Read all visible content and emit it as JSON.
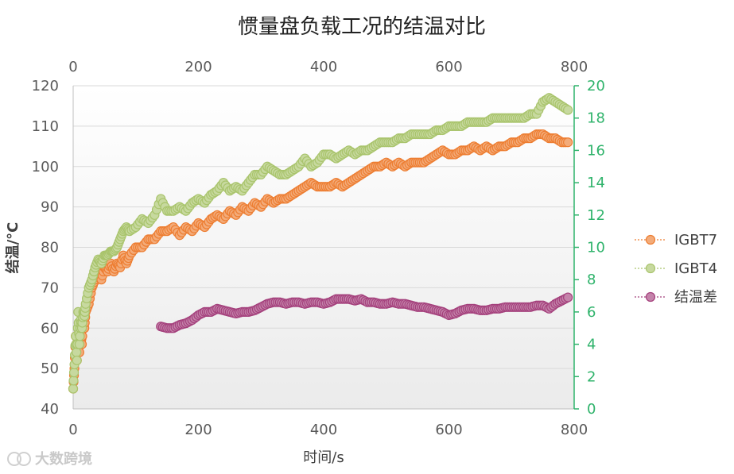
{
  "chart_data": {
    "type": "scatter",
    "title": "惯量盘负载工况的结温对比",
    "xlabel": "时间/s",
    "ylabel": "结温/°C",
    "xlim": [
      0,
      800
    ],
    "ylim": [
      40,
      120
    ],
    "y2lim": [
      0,
      20
    ],
    "x_ticks": [
      "0",
      "200",
      "400",
      "600",
      "800"
    ],
    "x2_ticks": [
      "0",
      "200",
      "400",
      "600",
      "800"
    ],
    "y_ticks": [
      "40",
      "50",
      "60",
      "70",
      "80",
      "90",
      "100",
      "110",
      "120"
    ],
    "y2_ticks": [
      "0",
      "2",
      "4",
      "6",
      "8",
      "10",
      "12",
      "14",
      "16",
      "18",
      "20"
    ],
    "grid": true,
    "legend_position": "right",
    "series": [
      {
        "name": "IGBT7",
        "axis": "left",
        "color": "#ed7d31",
        "points": [
          [
            0,
            45
          ],
          [
            2,
            50
          ],
          [
            4,
            58
          ],
          [
            6,
            52
          ],
          [
            8,
            58
          ],
          [
            10,
            54
          ],
          [
            12,
            60
          ],
          [
            14,
            56
          ],
          [
            16,
            62
          ],
          [
            18,
            60
          ],
          [
            20,
            64
          ],
          [
            25,
            66
          ],
          [
            30,
            70
          ],
          [
            35,
            72
          ],
          [
            40,
            74
          ],
          [
            45,
            72
          ],
          [
            50,
            75
          ],
          [
            55,
            74
          ],
          [
            60,
            76
          ],
          [
            65,
            74
          ],
          [
            70,
            76
          ],
          [
            75,
            75
          ],
          [
            80,
            78
          ],
          [
            85,
            76
          ],
          [
            90,
            78
          ],
          [
            100,
            80
          ],
          [
            110,
            80
          ],
          [
            120,
            82
          ],
          [
            130,
            82
          ],
          [
            140,
            84
          ],
          [
            150,
            84
          ],
          [
            160,
            85
          ],
          [
            170,
            83
          ],
          [
            180,
            85
          ],
          [
            190,
            84
          ],
          [
            200,
            86
          ],
          [
            210,
            85
          ],
          [
            220,
            87
          ],
          [
            230,
            88
          ],
          [
            240,
            87
          ],
          [
            250,
            89
          ],
          [
            260,
            88
          ],
          [
            270,
            90
          ],
          [
            280,
            89
          ],
          [
            290,
            91
          ],
          [
            300,
            90
          ],
          [
            310,
            92
          ],
          [
            320,
            91
          ],
          [
            330,
            92
          ],
          [
            340,
            92
          ],
          [
            350,
            93
          ],
          [
            360,
            94
          ],
          [
            370,
            95
          ],
          [
            380,
            96
          ],
          [
            390,
            95
          ],
          [
            400,
            95
          ],
          [
            410,
            95
          ],
          [
            420,
            96
          ],
          [
            430,
            95
          ],
          [
            440,
            96
          ],
          [
            450,
            97
          ],
          [
            460,
            98
          ],
          [
            470,
            99
          ],
          [
            480,
            100
          ],
          [
            490,
            100
          ],
          [
            500,
            101
          ],
          [
            510,
            100
          ],
          [
            520,
            101
          ],
          [
            530,
            100
          ],
          [
            540,
            101
          ],
          [
            550,
            101
          ],
          [
            560,
            101
          ],
          [
            570,
            102
          ],
          [
            580,
            103
          ],
          [
            590,
            104
          ],
          [
            600,
            103
          ],
          [
            610,
            103
          ],
          [
            620,
            104
          ],
          [
            630,
            104
          ],
          [
            640,
            105
          ],
          [
            650,
            104
          ],
          [
            660,
            105
          ],
          [
            670,
            104
          ],
          [
            680,
            105
          ],
          [
            690,
            105
          ],
          [
            700,
            106
          ],
          [
            710,
            106
          ],
          [
            720,
            107
          ],
          [
            730,
            107
          ],
          [
            740,
            108
          ],
          [
            750,
            108
          ],
          [
            760,
            107
          ],
          [
            770,
            107
          ],
          [
            780,
            106
          ],
          [
            790,
            106
          ]
        ]
      },
      {
        "name": "IGBT4",
        "axis": "left",
        "color": "#a9c46c",
        "points": [
          [
            0,
            45
          ],
          [
            2,
            51
          ],
          [
            4,
            58
          ],
          [
            6,
            52
          ],
          [
            8,
            64
          ],
          [
            10,
            56
          ],
          [
            12,
            62
          ],
          [
            14,
            60
          ],
          [
            16,
            64
          ],
          [
            18,
            63
          ],
          [
            20,
            66
          ],
          [
            25,
            70
          ],
          [
            30,
            72
          ],
          [
            35,
            75
          ],
          [
            40,
            77
          ],
          [
            45,
            76
          ],
          [
            50,
            78
          ],
          [
            55,
            78
          ],
          [
            60,
            79
          ],
          [
            65,
            79
          ],
          [
            70,
            80
          ],
          [
            75,
            82
          ],
          [
            80,
            84
          ],
          [
            85,
            85
          ],
          [
            90,
            84
          ],
          [
            100,
            85
          ],
          [
            110,
            87
          ],
          [
            120,
            86
          ],
          [
            130,
            88
          ],
          [
            140,
            92
          ],
          [
            150,
            89
          ],
          [
            160,
            89
          ],
          [
            170,
            90
          ],
          [
            180,
            89
          ],
          [
            190,
            91
          ],
          [
            200,
            92
          ],
          [
            210,
            91
          ],
          [
            220,
            93
          ],
          [
            230,
            94
          ],
          [
            240,
            96
          ],
          [
            250,
            94
          ],
          [
            260,
            95
          ],
          [
            270,
            94
          ],
          [
            280,
            96
          ],
          [
            290,
            98
          ],
          [
            300,
            98
          ],
          [
            310,
            100
          ],
          [
            320,
            99
          ],
          [
            330,
            98
          ],
          [
            340,
            98
          ],
          [
            350,
            99
          ],
          [
            360,
            100
          ],
          [
            370,
            102
          ],
          [
            380,
            100
          ],
          [
            390,
            101
          ],
          [
            400,
            103
          ],
          [
            410,
            103
          ],
          [
            420,
            102
          ],
          [
            430,
            103
          ],
          [
            440,
            104
          ],
          [
            450,
            103
          ],
          [
            460,
            104
          ],
          [
            470,
            104
          ],
          [
            480,
            105
          ],
          [
            490,
            106
          ],
          [
            500,
            106
          ],
          [
            510,
            106
          ],
          [
            520,
            107
          ],
          [
            530,
            107
          ],
          [
            540,
            108
          ],
          [
            550,
            108
          ],
          [
            560,
            108
          ],
          [
            570,
            108
          ],
          [
            580,
            109
          ],
          [
            590,
            109
          ],
          [
            600,
            110
          ],
          [
            610,
            110
          ],
          [
            620,
            110
          ],
          [
            630,
            111
          ],
          [
            640,
            111
          ],
          [
            650,
            111
          ],
          [
            660,
            111
          ],
          [
            670,
            112
          ],
          [
            680,
            112
          ],
          [
            690,
            112
          ],
          [
            700,
            112
          ],
          [
            710,
            112
          ],
          [
            720,
            112
          ],
          [
            730,
            113
          ],
          [
            740,
            113
          ],
          [
            750,
            116
          ],
          [
            760,
            117
          ],
          [
            770,
            116
          ],
          [
            780,
            115
          ],
          [
            790,
            114
          ]
        ]
      },
      {
        "name": "结温差",
        "axis": "right",
        "color": "#a4407c",
        "points": [
          [
            140,
            5.1
          ],
          [
            150,
            5.0
          ],
          [
            160,
            5.0
          ],
          [
            170,
            5.2
          ],
          [
            180,
            5.3
          ],
          [
            190,
            5.5
          ],
          [
            200,
            5.8
          ],
          [
            210,
            6.0
          ],
          [
            220,
            6.0
          ],
          [
            230,
            6.2
          ],
          [
            240,
            6.1
          ],
          [
            250,
            6.0
          ],
          [
            260,
            5.9
          ],
          [
            270,
            6.0
          ],
          [
            280,
            6.0
          ],
          [
            290,
            6.1
          ],
          [
            300,
            6.3
          ],
          [
            310,
            6.5
          ],
          [
            320,
            6.6
          ],
          [
            330,
            6.6
          ],
          [
            340,
            6.5
          ],
          [
            350,
            6.6
          ],
          [
            360,
            6.6
          ],
          [
            370,
            6.5
          ],
          [
            380,
            6.6
          ],
          [
            390,
            6.6
          ],
          [
            400,
            6.5
          ],
          [
            410,
            6.6
          ],
          [
            420,
            6.8
          ],
          [
            430,
            6.8
          ],
          [
            440,
            6.8
          ],
          [
            450,
            6.7
          ],
          [
            460,
            6.8
          ],
          [
            470,
            6.6
          ],
          [
            480,
            6.6
          ],
          [
            490,
            6.5
          ],
          [
            500,
            6.5
          ],
          [
            510,
            6.6
          ],
          [
            520,
            6.5
          ],
          [
            530,
            6.5
          ],
          [
            540,
            6.4
          ],
          [
            550,
            6.3
          ],
          [
            560,
            6.3
          ],
          [
            570,
            6.2
          ],
          [
            580,
            6.1
          ],
          [
            590,
            6.0
          ],
          [
            600,
            5.8
          ],
          [
            610,
            5.9
          ],
          [
            620,
            6.1
          ],
          [
            630,
            6.2
          ],
          [
            640,
            6.2
          ],
          [
            650,
            6.1
          ],
          [
            660,
            6.1
          ],
          [
            670,
            6.2
          ],
          [
            680,
            6.2
          ],
          [
            690,
            6.3
          ],
          [
            700,
            6.3
          ],
          [
            710,
            6.3
          ],
          [
            720,
            6.3
          ],
          [
            730,
            6.3
          ],
          [
            740,
            6.4
          ],
          [
            750,
            6.4
          ],
          [
            760,
            6.2
          ],
          [
            770,
            6.5
          ],
          [
            780,
            6.7
          ],
          [
            790,
            6.9
          ]
        ]
      }
    ]
  },
  "watermark": "大数跨境"
}
